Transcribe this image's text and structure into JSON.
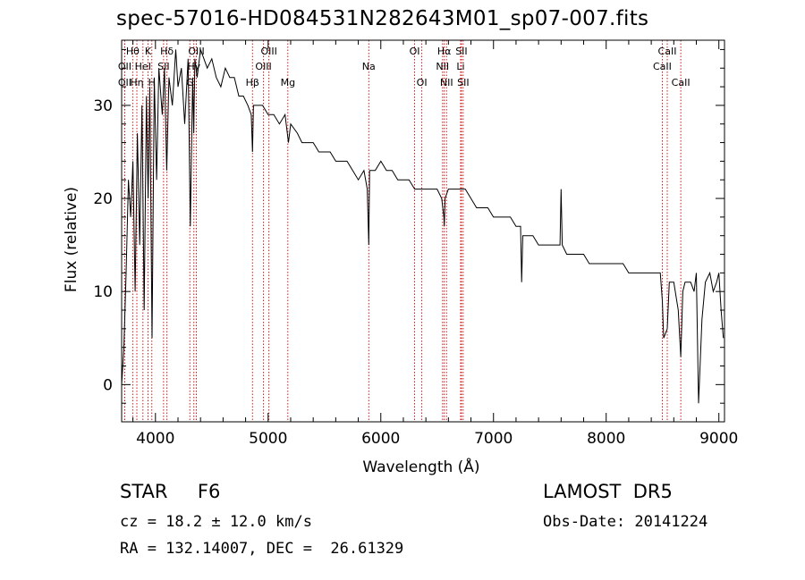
{
  "title": "spec-57016-HD084531N282643M01_sp07-007.fits",
  "info": {
    "object": "STAR     F6",
    "survey": "LAMOST  DR5",
    "cz": "cz = 18.2 ± 12.0 km/s",
    "obs_date": "Obs-Date: 20141224",
    "radec": "RA = 132.14007, DEC =  26.61329"
  },
  "chart_data": {
    "type": "line",
    "xlabel": "Wavelength (Å)",
    "ylabel": "Flux (relative)",
    "xlim": [
      3700,
      9050
    ],
    "ylim": [
      -4,
      37
    ],
    "xticks": [
      4000,
      5000,
      6000,
      7000,
      8000,
      9000
    ],
    "yticks": [
      0,
      10,
      20,
      30
    ],
    "grid": false,
    "colors": {
      "spectrum": "#000000",
      "lines": "#cc0000"
    },
    "spectrum": {
      "x": [
        3700,
        3720,
        3740,
        3760,
        3780,
        3800,
        3820,
        3840,
        3860,
        3880,
        3900,
        3920,
        3935,
        3950,
        3970,
        3990,
        4010,
        4030,
        4060,
        4080,
        4100,
        4120,
        4150,
        4180,
        4200,
        4230,
        4260,
        4290,
        4310,
        4330,
        4340,
        4350,
        4370,
        4400,
        4430,
        4460,
        4500,
        4540,
        4580,
        4620,
        4660,
        4700,
        4740,
        4780,
        4820,
        4850,
        4861,
        4870,
        4900,
        4950,
        5000,
        5050,
        5100,
        5150,
        5180,
        5200,
        5260,
        5300,
        5350,
        5400,
        5450,
        5500,
        5550,
        5600,
        5650,
        5700,
        5750,
        5800,
        5850,
        5880,
        5893,
        5900,
        5950,
        6000,
        6050,
        6100,
        6150,
        6200,
        6250,
        6300,
        6350,
        6400,
        6450,
        6500,
        6540,
        6560,
        6563,
        6570,
        6600,
        6650,
        6700,
        6750,
        6800,
        6850,
        6900,
        6950,
        7000,
        7050,
        7100,
        7150,
        7200,
        7240,
        7250,
        7260,
        7300,
        7350,
        7400,
        7450,
        7500,
        7550,
        7590,
        7600,
        7610,
        7650,
        7700,
        7750,
        7800,
        7850,
        7900,
        7950,
        8000,
        8050,
        8100,
        8150,
        8200,
        8250,
        8300,
        8350,
        8400,
        8450,
        8480,
        8498,
        8510,
        8542,
        8560,
        8600,
        8640,
        8662,
        8680,
        8700,
        8750,
        8780,
        8800,
        8820,
        8850,
        8880,
        8920,
        8950,
        8980,
        9000,
        9020,
        9040
      ],
      "y": [
        0,
        4,
        12,
        22,
        18,
        24,
        10,
        27,
        15,
        30,
        8,
        31,
        20,
        32,
        5,
        33,
        22,
        34,
        29,
        34,
        23,
        33,
        30,
        36,
        32,
        34,
        28,
        35,
        17,
        33,
        27,
        35,
        33,
        36,
        35,
        34,
        35,
        33,
        32,
        34,
        33,
        33,
        31,
        31,
        30,
        29,
        25,
        30,
        30,
        30,
        29,
        29,
        28,
        29,
        26,
        28,
        27,
        26,
        26,
        26,
        25,
        25,
        25,
        24,
        24,
        24,
        23,
        22,
        23,
        21,
        15,
        23,
        23,
        24,
        23,
        23,
        22,
        22,
        22,
        21,
        21,
        21,
        21,
        21,
        20,
        18,
        17,
        20,
        21,
        21,
        21,
        21,
        20,
        19,
        19,
        19,
        18,
        18,
        18,
        18,
        17,
        17,
        11,
        16,
        16,
        16,
        15,
        15,
        15,
        15,
        15,
        21,
        15,
        14,
        14,
        14,
        14,
        13,
        13,
        13,
        13,
        13,
        13,
        13,
        12,
        12,
        12,
        12,
        12,
        12,
        12,
        9,
        5,
        6,
        11,
        11,
        8,
        3,
        10,
        11,
        11,
        10,
        12,
        -2,
        7,
        11,
        12,
        10,
        11,
        12,
        8,
        5
      ]
    },
    "spectral_lines": [
      {
        "label": "OII",
        "wl": 3727,
        "row": 1
      },
      {
        "label": "OII",
        "wl": 3727,
        "row": 2
      },
      {
        "label": "Hθ",
        "wl": 3798,
        "row": 0
      },
      {
        "label": "Hη",
        "wl": 3835,
        "row": 2
      },
      {
        "label": "HeI",
        "wl": 3889,
        "row": 1
      },
      {
        "label": "K",
        "wl": 3934,
        "row": 0
      },
      {
        "label": "H",
        "wl": 3968,
        "row": 2
      },
      {
        "label": "SII",
        "wl": 4072,
        "row": 1
      },
      {
        "label": "Hδ",
        "wl": 4102,
        "row": 0
      },
      {
        "label": "G",
        "wl": 4305,
        "row": 2
      },
      {
        "label": "Hγ",
        "wl": 4341,
        "row": 1
      },
      {
        "label": "OIII",
        "wl": 4363,
        "row": 0
      },
      {
        "label": "Hβ",
        "wl": 4861,
        "row": 2
      },
      {
        "label": "OIII",
        "wl": 4959,
        "row": 1
      },
      {
        "label": "OIII",
        "wl": 5007,
        "row": 0
      },
      {
        "label": "Mg",
        "wl": 5175,
        "row": 2
      },
      {
        "label": "Na",
        "wl": 5893,
        "row": 1
      },
      {
        "label": "OI",
        "wl": 6300,
        "row": 0
      },
      {
        "label": "OI",
        "wl": 6364,
        "row": 2
      },
      {
        "label": "NII",
        "wl": 6548,
        "row": 1
      },
      {
        "label": "Hα",
        "wl": 6563,
        "row": 0
      },
      {
        "label": "NII",
        "wl": 6583,
        "row": 2
      },
      {
        "label": "Li",
        "wl": 6708,
        "row": 1
      },
      {
        "label": "SII",
        "wl": 6716,
        "row": 0
      },
      {
        "label": "SII",
        "wl": 6731,
        "row": 2
      },
      {
        "label": "CaII",
        "wl": 8498,
        "row": 1
      },
      {
        "label": "CaII",
        "wl": 8542,
        "row": 0
      },
      {
        "label": "CaII",
        "wl": 8662,
        "row": 2
      }
    ]
  }
}
